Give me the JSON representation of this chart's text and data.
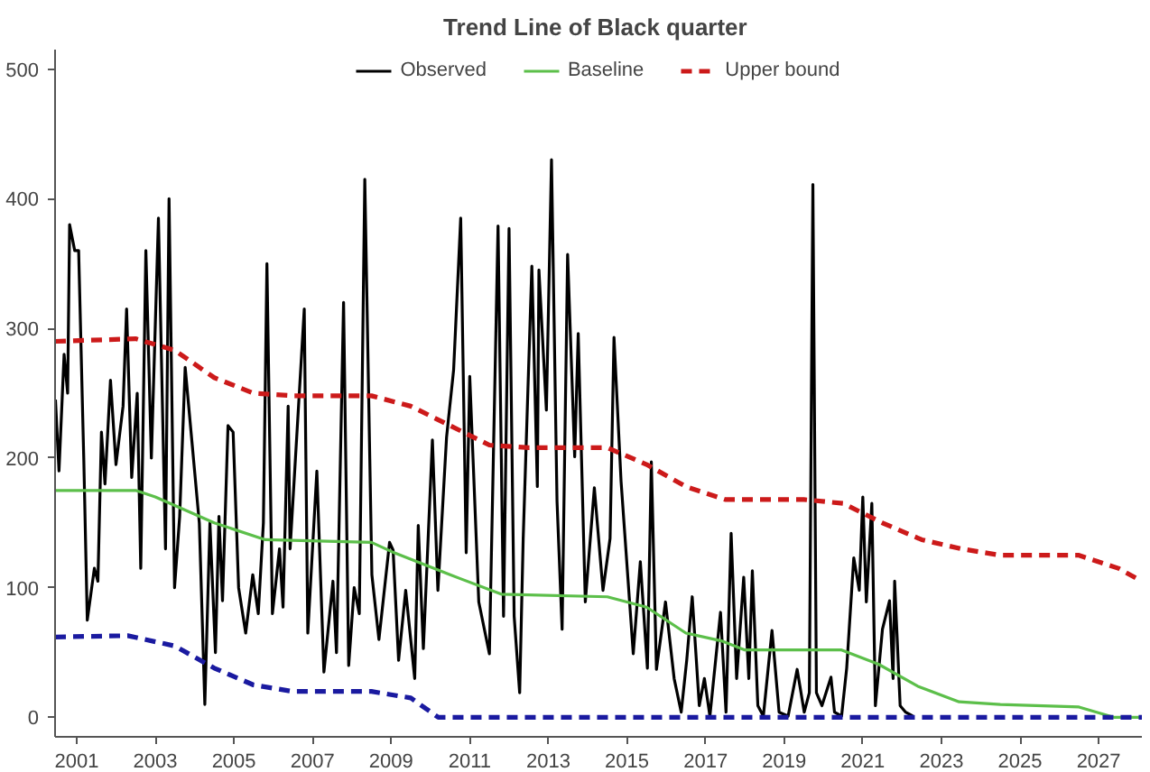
{
  "chart_data": {
    "type": "line",
    "title": "Trend Line of  Black quarter",
    "xlim": [
      2000.45,
      2028.1
    ],
    "ylim": [
      -15,
      515
    ],
    "xticks": [
      2001,
      2003,
      2005,
      2007,
      2009,
      2011,
      2013,
      2015,
      2017,
      2019,
      2021,
      2023,
      2025,
      2027
    ],
    "yticks": [
      0,
      100,
      200,
      300,
      400,
      500
    ],
    "grid": false,
    "legend": "top",
    "marker": "none",
    "series": [
      {
        "name": "Observed",
        "color": "#000000",
        "line_style": "solid",
        "x": [
          2000.46,
          2000.55,
          2000.68,
          2000.77,
          2000.82,
          2000.95,
          2001.05,
          2001.18,
          2001.27,
          2001.45,
          2001.54,
          2001.63,
          2001.72,
          2001.86,
          2002.0,
          2002.18,
          2002.27,
          2002.4,
          2002.54,
          2002.63,
          2002.76,
          2002.9,
          2003.08,
          2003.26,
          2003.35,
          2003.49,
          2003.62,
          2003.76,
          2003.94,
          2004.12,
          2004.26,
          2004.39,
          2004.53,
          2004.62,
          2004.71,
          2004.85,
          2004.98,
          2005.12,
          2005.3,
          2005.48,
          2005.62,
          2005.75,
          2005.84,
          2005.98,
          2006.16,
          2006.25,
          2006.38,
          2006.43,
          2006.79,
          2006.88,
          2007.11,
          2007.29,
          2007.52,
          2007.61,
          2007.79,
          2007.92,
          2008.06,
          2008.19,
          2008.33,
          2008.51,
          2008.69,
          2008.96,
          2009.05,
          2009.19,
          2009.37,
          2009.6,
          2009.69,
          2009.82,
          2010.05,
          2010.19,
          2010.41,
          2010.59,
          2010.77,
          2010.91,
          2011.0,
          2011.23,
          2011.5,
          2011.72,
          2011.86,
          2012.0,
          2012.13,
          2012.27,
          2012.36,
          2012.58,
          2012.72,
          2012.76,
          2012.95,
          2013.08,
          2013.22,
          2013.35,
          2013.49,
          2013.67,
          2013.76,
          2013.94,
          2014.17,
          2014.39,
          2014.57,
          2014.67,
          2014.85,
          2015.16,
          2015.34,
          2015.52,
          2015.62,
          2015.75,
          2015.98,
          2016.2,
          2016.38,
          2016.52,
          2016.66,
          2016.84,
          2016.97,
          2017.11,
          2017.38,
          2017.52,
          2017.65,
          2017.79,
          2017.97,
          2018.1,
          2018.19,
          2018.33,
          2018.47,
          2018.69,
          2018.87,
          2019.1,
          2019.33,
          2019.51,
          2019.64,
          2019.73,
          2019.82,
          2019.96,
          2020.19,
          2020.28,
          2020.46,
          2020.59,
          2020.77,
          2020.91,
          2021.0,
          2021.09,
          2021.23,
          2021.32,
          2021.5,
          2021.68,
          2021.77,
          2021.81,
          2021.95,
          2022.09,
          2022.27
        ],
        "values": [
          245,
          190,
          280,
          250,
          380,
          360,
          360,
          200,
          75,
          115,
          105,
          220,
          180,
          260,
          195,
          240,
          315,
          185,
          250,
          115,
          360,
          200,
          385,
          130,
          400,
          100,
          155,
          270,
          210,
          150,
          10,
          150,
          50,
          155,
          90,
          225,
          220,
          100,
          65,
          110,
          80,
          150,
          350,
          80,
          130,
          85,
          240,
          130,
          315,
          65,
          190,
          35,
          105,
          50,
          320,
          40,
          100,
          80,
          415,
          110,
          60,
          135,
          129,
          44,
          98,
          30,
          148,
          53,
          214,
          98,
          216,
          268,
          385,
          127,
          263,
          89,
          49,
          379,
          78,
          377,
          78,
          19,
          138,
          348,
          178,
          345,
          237,
          430,
          167,
          68,
          357,
          201,
          296,
          89,
          177,
          98,
          138,
          293,
          182,
          49,
          120,
          38,
          197,
          37,
          89,
          30,
          4,
          44,
          93,
          9,
          30,
          1,
          81,
          4,
          142,
          30,
          108,
          30,
          113,
          9,
          1,
          67,
          4,
          1,
          37,
          4,
          19,
          411,
          19,
          9,
          31,
          4,
          1,
          38,
          123,
          98,
          170,
          89,
          165,
          9,
          68,
          90,
          30,
          105,
          9,
          4,
          1
        ]
      },
      {
        "name": "Baseline",
        "color": "#5cbf4a",
        "line_style": "solid",
        "x": [
          2000.45,
          2002.5,
          2003.0,
          2004.5,
          2005.8,
          2008.5,
          2009.0,
          2010.5,
          2011.8,
          2014.5,
          2015.5,
          2016.5,
          2017.4,
          2018.0,
          2020.46,
          2021.4,
          2022.4,
          2023.45,
          2024.5,
          2026.5,
          2027.4,
          2028.1
        ],
        "values": [
          175,
          175,
          170,
          150,
          137,
          135,
          128,
          110,
          95,
          93,
          85,
          65,
          59,
          52,
          52,
          41,
          24,
          12,
          10,
          8,
          0,
          0
        ]
      },
      {
        "name": "Upper bound",
        "color": "#cc1a1a",
        "line_style": "dashed",
        "x": [
          2000.45,
          2002.5,
          2003.5,
          2004.5,
          2005.5,
          2006.5,
          2008.5,
          2009.5,
          2010.5,
          2011.5,
          2012.5,
          2014.5,
          2015.5,
          2016.5,
          2017.5,
          2019.5,
          2020.5,
          2021.5,
          2022.5,
          2023.5,
          2024.5,
          2026.5,
          2027.5,
          2028.1
        ],
        "values": [
          290,
          292,
          283,
          262,
          250,
          248,
          248,
          240,
          225,
          210,
          208,
          208,
          195,
          178,
          168,
          168,
          165,
          150,
          137,
          130,
          125,
          125,
          115,
          105
        ]
      },
      {
        "color": "#1a1aa0",
        "line_style": "dashed",
        "x": [
          2000.45,
          2002.3,
          2003.5,
          2004.5,
          2005.5,
          2006.5,
          2008.5,
          2009.5,
          2010.2,
          2028.1
        ],
        "values": [
          62,
          63,
          55,
          38,
          25,
          20,
          20,
          15,
          0,
          0
        ]
      }
    ]
  }
}
